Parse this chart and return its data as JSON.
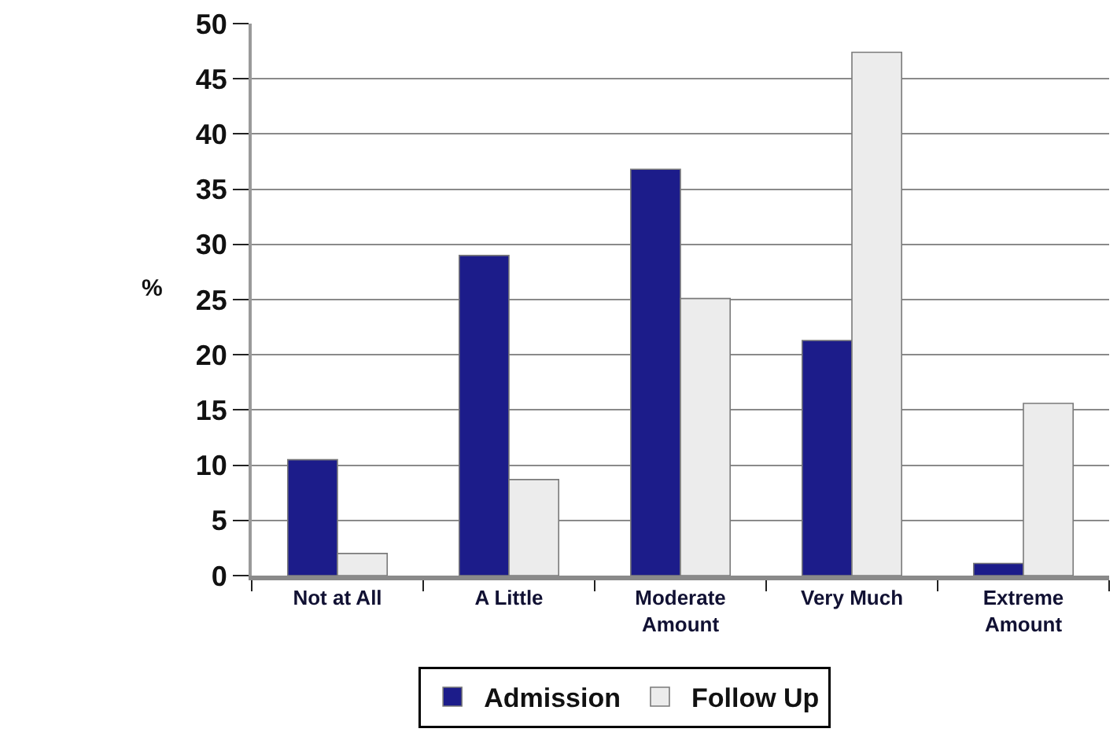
{
  "chart_data": {
    "type": "bar",
    "ylabel": "%",
    "categories": [
      "Not at All",
      "A Little",
      "Moderate\nAmount",
      "Very Much",
      "Extreme\nAmount"
    ],
    "series": [
      {
        "name": "Admission",
        "color": "#1c1c8a",
        "values": [
          10.5,
          29,
          36.8,
          21.3,
          1.1
        ]
      },
      {
        "name": "Follow Up",
        "color": "#ececec",
        "values": [
          2,
          8.7,
          25.1,
          47.4,
          15.6
        ]
      }
    ],
    "ylim": [
      0,
      50
    ],
    "yticks": [
      0,
      5,
      10,
      15,
      20,
      25,
      30,
      35,
      40,
      45,
      50
    ],
    "grid": "y",
    "legend": "bottom"
  }
}
